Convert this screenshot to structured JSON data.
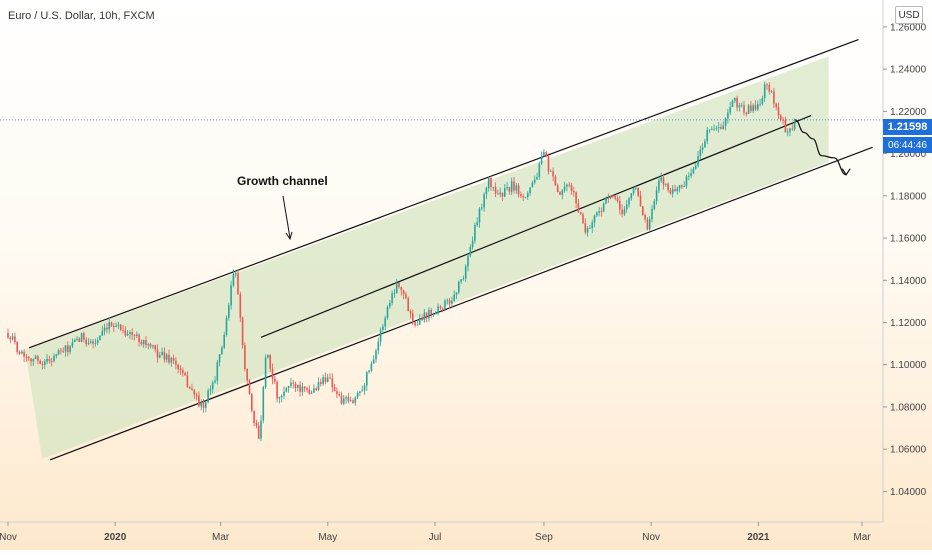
{
  "title": "Euro / U.S. Dollar, 10h, FXCM",
  "currency_badge": "USD",
  "current_price": "1.21598",
  "countdown": "06:44:46",
  "annotation": "Growth channel",
  "colors": {
    "up": "#26a69a",
    "down": "#ef5350",
    "channel_fill": "#d7e6c4",
    "channel_line": "#111111",
    "price_line": "#1e6fd9"
  },
  "chart_data": {
    "type": "candlestick",
    "title": "Euro / U.S. Dollar, 10h, FXCM",
    "y_ticks": [
      "1.26000",
      "1.24000",
      "1.22000",
      "1.20000",
      "1.18000",
      "1.16000",
      "1.14000",
      "1.12000",
      "1.10000",
      "1.08000",
      "1.06000",
      "1.04000"
    ],
    "y_range": [
      1.026,
      1.268
    ],
    "x_ticks": [
      "Nov",
      "2020",
      "Mar",
      "May",
      "Jul",
      "Sep",
      "Nov",
      "2021",
      "Mar"
    ],
    "x_ticks_bold": [
      "2020",
      "2021"
    ],
    "x_tick_dates": [
      "2019-11-01",
      "2020-01-01",
      "2020-03-01",
      "2020-05-01",
      "2020-07-01",
      "2020-09-01",
      "2020-11-01",
      "2021-01-01",
      "2021-03-01"
    ],
    "x_range": [
      "2019-11-01",
      "2021-03-01"
    ],
    "price_path": [
      [
        "2019-11-01",
        1.115
      ],
      [
        "2019-11-08",
        1.106
      ],
      [
        "2019-11-15",
        1.103
      ],
      [
        "2019-11-22",
        1.101
      ],
      [
        "2019-11-29",
        1.105
      ],
      [
        "2019-12-06",
        1.108
      ],
      [
        "2019-12-13",
        1.113
      ],
      [
        "2019-12-20",
        1.11
      ],
      [
        "2019-12-31",
        1.12
      ],
      [
        "2020-01-08",
        1.115
      ],
      [
        "2020-01-16",
        1.112
      ],
      [
        "2020-01-24",
        1.106
      ],
      [
        "2020-02-03",
        1.102
      ],
      [
        "2020-02-12",
        1.09
      ],
      [
        "2020-02-20",
        1.079
      ],
      [
        "2020-02-27",
        1.095
      ],
      [
        "2020-03-04",
        1.118
      ],
      [
        "2020-03-09",
        1.148
      ],
      [
        "2020-03-14",
        1.105
      ],
      [
        "2020-03-19",
        1.075
      ],
      [
        "2020-03-23",
        1.065
      ],
      [
        "2020-03-27",
        1.108
      ],
      [
        "2020-04-03",
        1.082
      ],
      [
        "2020-04-10",
        1.092
      ],
      [
        "2020-04-20",
        1.086
      ],
      [
        "2020-05-01",
        1.095
      ],
      [
        "2020-05-08",
        1.083
      ],
      [
        "2020-05-15",
        1.082
      ],
      [
        "2020-05-22",
        1.092
      ],
      [
        "2020-05-29",
        1.109
      ],
      [
        "2020-06-05",
        1.13
      ],
      [
        "2020-06-10",
        1.14
      ],
      [
        "2020-06-19",
        1.12
      ],
      [
        "2020-06-26",
        1.124
      ],
      [
        "2020-07-03",
        1.127
      ],
      [
        "2020-07-10",
        1.13
      ],
      [
        "2020-07-17",
        1.142
      ],
      [
        "2020-07-24",
        1.165
      ],
      [
        "2020-07-31",
        1.187
      ],
      [
        "2020-08-07",
        1.18
      ],
      [
        "2020-08-14",
        1.185
      ],
      [
        "2020-08-21",
        1.18
      ],
      [
        "2020-08-28",
        1.19
      ],
      [
        "2020-09-01",
        1.2
      ],
      [
        "2020-09-09",
        1.18
      ],
      [
        "2020-09-16",
        1.185
      ],
      [
        "2020-09-25",
        1.163
      ],
      [
        "2020-10-02",
        1.173
      ],
      [
        "2020-10-09",
        1.18
      ],
      [
        "2020-10-16",
        1.172
      ],
      [
        "2020-10-23",
        1.185
      ],
      [
        "2020-10-30",
        1.164
      ],
      [
        "2020-11-06",
        1.188
      ],
      [
        "2020-11-13",
        1.182
      ],
      [
        "2020-11-20",
        1.186
      ],
      [
        "2020-11-27",
        1.196
      ],
      [
        "2020-12-04",
        1.213
      ],
      [
        "2020-12-11",
        1.211
      ],
      [
        "2020-12-18",
        1.225
      ],
      [
        "2020-12-25",
        1.22
      ],
      [
        "2021-01-01",
        1.223
      ],
      [
        "2021-01-06",
        1.234
      ],
      [
        "2021-01-12",
        1.22
      ],
      [
        "2021-01-18",
        1.208
      ],
      [
        "2021-01-22",
        1.216
      ]
    ],
    "channel_upper": [
      [
        "2019-11-13",
        1.108
      ],
      [
        "2021-02-27",
        1.254
      ]
    ],
    "channel_middle": [
      [
        "2020-03-24",
        1.113
      ],
      [
        "2021-01-31",
        1.218
      ]
    ],
    "channel_lower": [
      [
        "2019-11-25",
        1.055
      ],
      [
        "2021-03-07",
        1.203
      ]
    ],
    "projection": [
      [
        "2021-01-22",
        1.216
      ],
      [
        "2021-01-27",
        1.21
      ],
      [
        "2021-02-01",
        1.207
      ],
      [
        "2021-02-06",
        1.199
      ],
      [
        "2021-02-13",
        1.198
      ],
      [
        "2021-02-20",
        1.19
      ]
    ]
  }
}
